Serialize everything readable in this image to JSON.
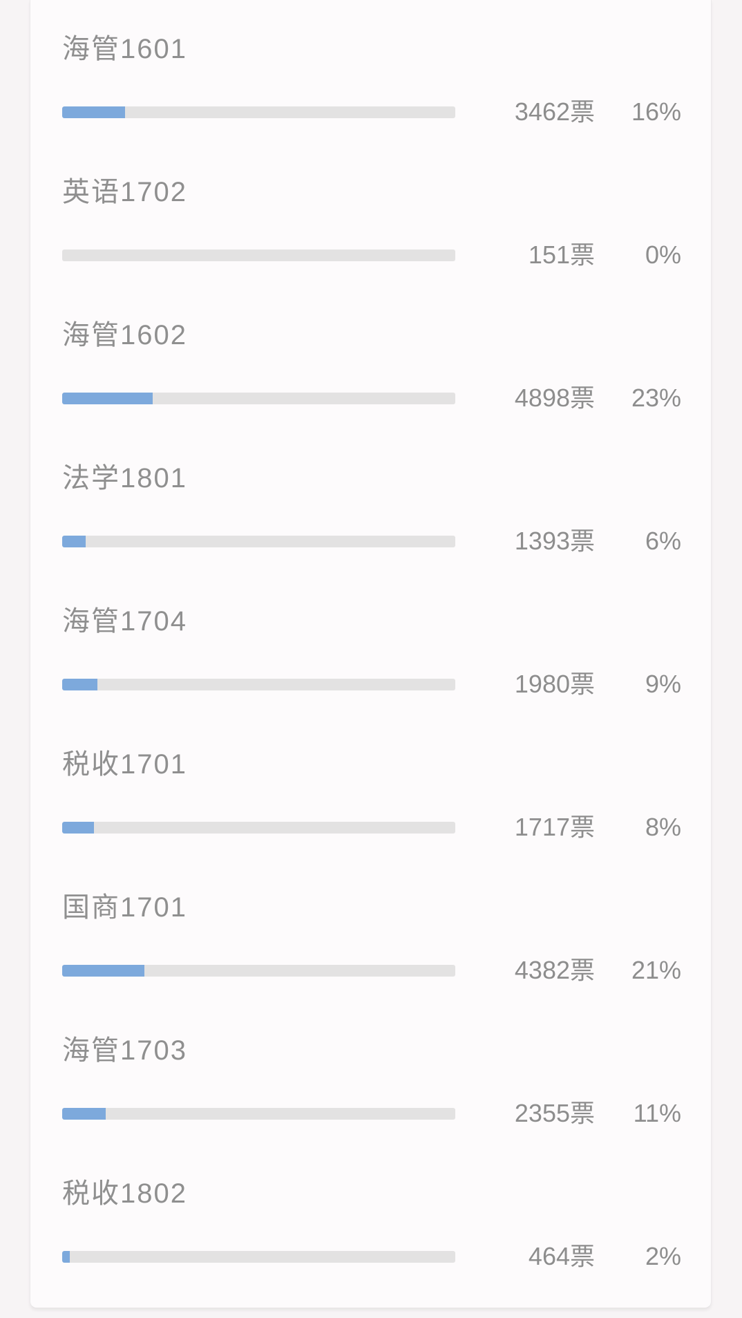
{
  "ui_colors": {
    "bar_fill": "#7da9dc",
    "bar_track": "#e3e2e2",
    "text_gray": "#8d8d8d",
    "card_background": "#fdfbfc",
    "page_background": "#f7f4f5"
  },
  "poll": {
    "vote_unit": "票",
    "items": [
      {
        "label": "海管1601",
        "votes": 3462,
        "votes_label": "3462票",
        "percent": 16,
        "percent_label": "16%"
      },
      {
        "label": "英语1702",
        "votes": 151,
        "votes_label": "151票",
        "percent": 0,
        "percent_label": "0%"
      },
      {
        "label": "海管1602",
        "votes": 4898,
        "votes_label": "4898票",
        "percent": 23,
        "percent_label": "23%"
      },
      {
        "label": "法学1801",
        "votes": 1393,
        "votes_label": "1393票",
        "percent": 6,
        "percent_label": "6%"
      },
      {
        "label": "海管1704",
        "votes": 1980,
        "votes_label": "1980票",
        "percent": 9,
        "percent_label": "9%"
      },
      {
        "label": "税收1701",
        "votes": 1717,
        "votes_label": "1717票",
        "percent": 8,
        "percent_label": "8%"
      },
      {
        "label": "国商1701",
        "votes": 4382,
        "votes_label": "4382票",
        "percent": 21,
        "percent_label": "21%"
      },
      {
        "label": "海管1703",
        "votes": 2355,
        "votes_label": "2355票",
        "percent": 11,
        "percent_label": "11%"
      },
      {
        "label": "税收1802",
        "votes": 464,
        "votes_label": "464票",
        "percent": 2,
        "percent_label": "2%"
      }
    ]
  }
}
